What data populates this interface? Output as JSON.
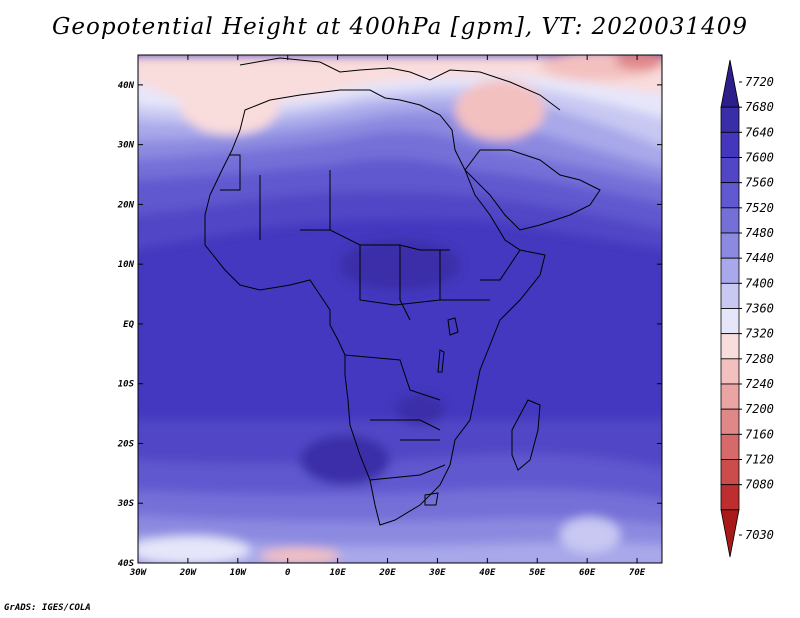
{
  "title": "Geopotential Height at 400hPa [gpm], VT: 2020031409",
  "credit": "GrADS: IGES/COLA",
  "map": {
    "lon_range": [
      -30,
      75
    ],
    "lat_range": [
      -40,
      45
    ],
    "x_ticks": [
      {
        "value": -30,
        "label": "30W"
      },
      {
        "value": -20,
        "label": "20W"
      },
      {
        "value": -10,
        "label": "10W"
      },
      {
        "value": 0,
        "label": "0"
      },
      {
        "value": 10,
        "label": "10E"
      },
      {
        "value": 20,
        "label": "20E"
      },
      {
        "value": 30,
        "label": "30E"
      },
      {
        "value": 40,
        "label": "40E"
      },
      {
        "value": 50,
        "label": "50E"
      },
      {
        "value": 60,
        "label": "60E"
      },
      {
        "value": 70,
        "label": "70E"
      }
    ],
    "y_ticks": [
      {
        "value": 40,
        "label": "40N"
      },
      {
        "value": 30,
        "label": "30N"
      },
      {
        "value": 20,
        "label": "20N"
      },
      {
        "value": 10,
        "label": "10N"
      },
      {
        "value": 0,
        "label": "EQ"
      },
      {
        "value": -10,
        "label": "10S"
      },
      {
        "value": -20,
        "label": "20S"
      },
      {
        "value": -30,
        "label": "30S"
      },
      {
        "value": -40,
        "label": "40S"
      }
    ]
  },
  "colorbar": {
    "labels": [
      "7720",
      "7680",
      "7640",
      "7600",
      "7560",
      "7520",
      "7480",
      "7440",
      "7400",
      "7360",
      "7320",
      "7280",
      "7240",
      "7200",
      "7160",
      "7120",
      "7080",
      "7030"
    ],
    "colors": [
      "#2c1f8c",
      "#3a2ea8",
      "#4537bd",
      "#5146c6",
      "#6159cf",
      "#7570d8",
      "#8c8ae0",
      "#a8a8ea",
      "#c8c8f3",
      "#e6e6fa",
      "#f9dcdc",
      "#f3c0c0",
      "#eaa4a4",
      "#e08888",
      "#d66a6a",
      "#cc4c4c",
      "#be2e2e",
      "#a81a1a"
    ]
  }
}
